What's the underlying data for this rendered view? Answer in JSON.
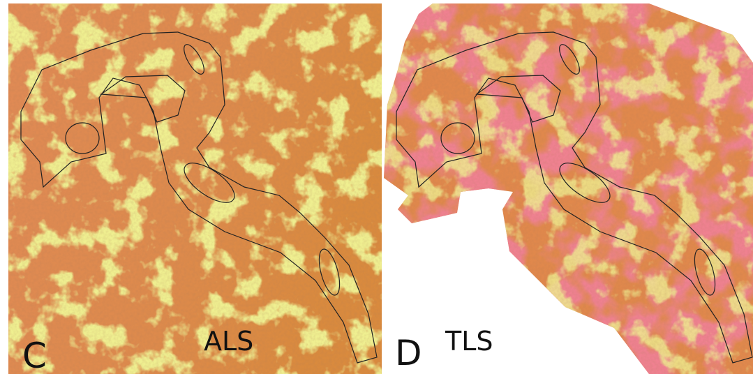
{
  "panels": [
    {
      "letter": "C",
      "label": "ALS"
    },
    {
      "letter": "D",
      "label": "TLS"
    }
  ]
}
